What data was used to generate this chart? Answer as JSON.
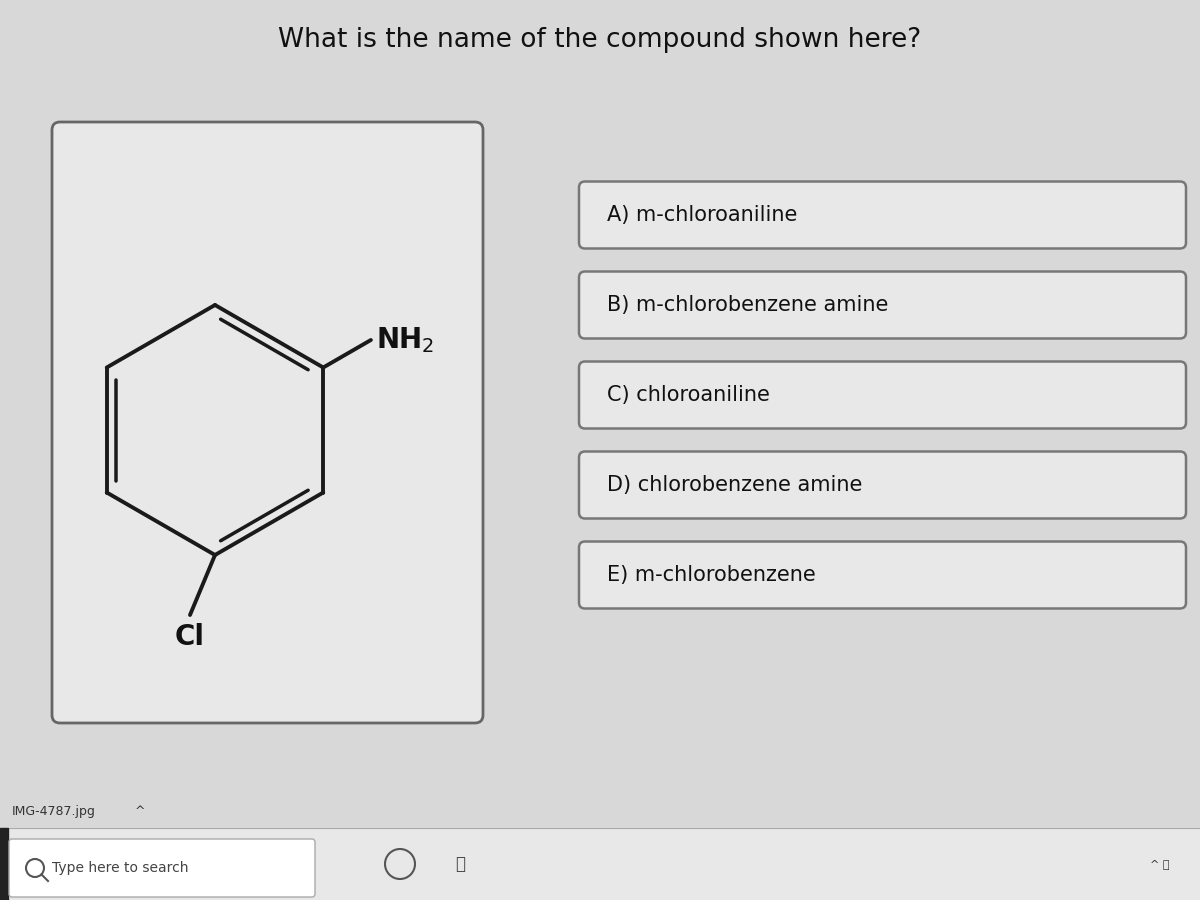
{
  "title": "What is the name of the compound shown here?",
  "title_fontsize": 19,
  "bg_color": "#d8d8d8",
  "choices": [
    "A) m-chloroaniline",
    "B) m-chlorobenzene amine",
    "C) chloroaniline",
    "D) chlorobenzene amine",
    "E) m-chlorobenzene"
  ],
  "choice_box_color": "#e8e8e8",
  "choice_text_color": "#111111",
  "choice_fontsize": 15,
  "mol_box_color": "#e8e8e8",
  "nh2_label": "NH$_2$",
  "cl_label": "Cl",
  "taskbar_color": "#e0e0e0",
  "taskbar_label": "Type here to search",
  "file_label": "IMG-4787.jpg"
}
